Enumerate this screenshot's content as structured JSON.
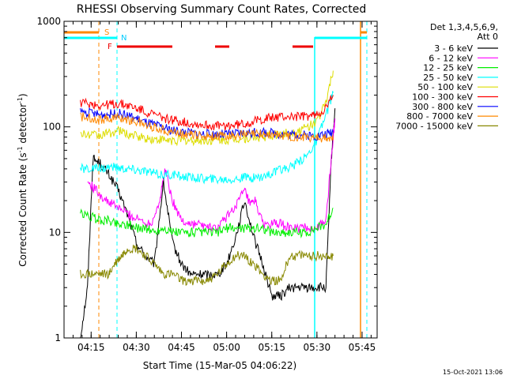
{
  "chart_data": {
    "type": "line",
    "title": "RHESSI Observing Summary Count Rates, Corrected",
    "xlabel": "Start Time (15-Mar-05 04:06:22)",
    "ylabel_main": "Corrected Count Rate (s",
    "ylabel_sup1": "-1",
    "ylabel_mid": " detector",
    "ylabel_sup2": "-1",
    "ylabel_end": ")",
    "yscale": "log",
    "ylim": [
      1,
      1000
    ],
    "xlim_minutes": [
      4.1,
      5.8333
    ],
    "xticks": [
      {
        "label": "04:15",
        "value": 4.25
      },
      {
        "label": "04:30",
        "value": 4.5
      },
      {
        "label": "04:45",
        "value": 4.75
      },
      {
        "label": "05:00",
        "value": 5.0
      },
      {
        "label": "05:15",
        "value": 5.25
      },
      {
        "label": "05:30",
        "value": 5.5
      },
      {
        "label": "05:45",
        "value": 5.75
      }
    ],
    "yticks": [
      {
        "label": "1",
        "value": 1
      },
      {
        "label": "10",
        "value": 10
      },
      {
        "label": "100",
        "value": 100
      },
      {
        "label": "1000",
        "value": 1000
      }
    ],
    "legend_header": [
      "Det 1,3,4,5,6,9,",
      "Att 0"
    ],
    "legend_position": "right",
    "series": [
      {
        "name": "3 - 6 keV",
        "color": "#000000",
        "points": [
          [
            4.19,
            1
          ],
          [
            4.23,
            3
          ],
          [
            4.26,
            50
          ],
          [
            4.3,
            45
          ],
          [
            4.35,
            35
          ],
          [
            4.4,
            25
          ],
          [
            4.45,
            15
          ],
          [
            4.5,
            8
          ],
          [
            4.55,
            6
          ],
          [
            4.6,
            5
          ],
          [
            4.65,
            30
          ],
          [
            4.7,
            8
          ],
          [
            4.75,
            5
          ],
          [
            4.8,
            4
          ],
          [
            4.85,
            4
          ],
          [
            4.9,
            4
          ],
          [
            4.95,
            4
          ],
          [
            5.0,
            5
          ],
          [
            5.05,
            9
          ],
          [
            5.1,
            20
          ],
          [
            5.15,
            9
          ],
          [
            5.2,
            5
          ],
          [
            5.25,
            2.5
          ],
          [
            5.3,
            2.5
          ],
          [
            5.35,
            3
          ],
          [
            5.4,
            3
          ],
          [
            5.45,
            3
          ],
          [
            5.5,
            3
          ],
          [
            5.55,
            3
          ],
          [
            5.58,
            50
          ],
          [
            5.6,
            150
          ]
        ]
      },
      {
        "name": "6 - 12 keV",
        "color": "#ff00ff",
        "points": [
          [
            4.23,
            30
          ],
          [
            4.28,
            25
          ],
          [
            4.33,
            20
          ],
          [
            4.38,
            18
          ],
          [
            4.43,
            16
          ],
          [
            4.48,
            14
          ],
          [
            4.53,
            13
          ],
          [
            4.58,
            12
          ],
          [
            4.63,
            20
          ],
          [
            4.66,
            40
          ],
          [
            4.7,
            20
          ],
          [
            4.75,
            13
          ],
          [
            4.8,
            12
          ],
          [
            4.85,
            12
          ],
          [
            4.9,
            11
          ],
          [
            4.95,
            11
          ],
          [
            5.0,
            14
          ],
          [
            5.05,
            18
          ],
          [
            5.1,
            25
          ],
          [
            5.13,
            18
          ],
          [
            5.16,
            20
          ],
          [
            5.2,
            12
          ],
          [
            5.25,
            12
          ],
          [
            5.3,
            12
          ],
          [
            5.35,
            11
          ],
          [
            5.4,
            11
          ],
          [
            5.45,
            11
          ],
          [
            5.5,
            11
          ],
          [
            5.55,
            13
          ],
          [
            5.59,
            80
          ],
          [
            5.6,
            120
          ]
        ]
      },
      {
        "name": "12 - 25 keV",
        "color": "#00ee00",
        "points": [
          [
            4.19,
            15
          ],
          [
            4.25,
            14
          ],
          [
            4.3,
            13
          ],
          [
            4.35,
            13
          ],
          [
            4.4,
            12
          ],
          [
            4.45,
            12
          ],
          [
            4.5,
            11
          ],
          [
            4.55,
            11
          ],
          [
            4.6,
            10
          ],
          [
            4.65,
            11
          ],
          [
            4.7,
            10
          ],
          [
            4.75,
            10
          ],
          [
            4.8,
            10
          ],
          [
            4.85,
            10
          ],
          [
            4.9,
            10
          ],
          [
            4.95,
            10
          ],
          [
            5.0,
            11
          ],
          [
            5.05,
            11
          ],
          [
            5.1,
            11
          ],
          [
            5.15,
            11
          ],
          [
            5.2,
            11
          ],
          [
            5.25,
            10
          ],
          [
            5.3,
            10
          ],
          [
            5.35,
            10
          ],
          [
            5.4,
            10
          ],
          [
            5.45,
            10
          ],
          [
            5.5,
            11
          ],
          [
            5.55,
            12
          ],
          [
            5.59,
            17
          ]
        ]
      },
      {
        "name": "25 - 50 keV",
        "color": "#00ffff",
        "points": [
          [
            4.19,
            40
          ],
          [
            4.25,
            40
          ],
          [
            4.3,
            40
          ],
          [
            4.35,
            42
          ],
          [
            4.4,
            41
          ],
          [
            4.45,
            40
          ],
          [
            4.5,
            39
          ],
          [
            4.55,
            38
          ],
          [
            4.6,
            36
          ],
          [
            4.65,
            35
          ],
          [
            4.7,
            35
          ],
          [
            4.75,
            34
          ],
          [
            4.8,
            33
          ],
          [
            4.85,
            33
          ],
          [
            4.9,
            32
          ],
          [
            4.95,
            32
          ],
          [
            5.0,
            32
          ],
          [
            5.05,
            32
          ],
          [
            5.1,
            33
          ],
          [
            5.15,
            33
          ],
          [
            5.2,
            34
          ],
          [
            5.25,
            36
          ],
          [
            5.3,
            39
          ],
          [
            5.35,
            42
          ],
          [
            5.4,
            46
          ],
          [
            5.45,
            55
          ],
          [
            5.5,
            75
          ],
          [
            5.55,
            130
          ],
          [
            5.59,
            210
          ]
        ]
      },
      {
        "name": "50 - 100 keV",
        "color": "#dddd00",
        "points": [
          [
            4.19,
            85
          ],
          [
            4.25,
            84
          ],
          [
            4.3,
            83
          ],
          [
            4.35,
            87
          ],
          [
            4.4,
            92
          ],
          [
            4.45,
            86
          ],
          [
            4.5,
            82
          ],
          [
            4.55,
            78
          ],
          [
            4.6,
            76
          ],
          [
            4.65,
            75
          ],
          [
            4.7,
            74
          ],
          [
            4.75,
            74
          ],
          [
            4.8,
            74
          ],
          [
            4.85,
            74
          ],
          [
            4.9,
            74
          ],
          [
            4.95,
            75
          ],
          [
            5.0,
            75
          ],
          [
            5.05,
            77
          ],
          [
            5.1,
            78
          ],
          [
            5.15,
            79
          ],
          [
            5.2,
            80
          ],
          [
            5.25,
            82
          ],
          [
            5.3,
            85
          ],
          [
            5.35,
            88
          ],
          [
            5.4,
            92
          ],
          [
            5.45,
            100
          ],
          [
            5.5,
            115
          ],
          [
            5.55,
            170
          ],
          [
            5.59,
            340
          ]
        ]
      },
      {
        "name": "100 - 300 keV",
        "color": "#ff0000",
        "points": [
          [
            4.19,
            170
          ],
          [
            4.25,
            165
          ],
          [
            4.3,
            160
          ],
          [
            4.35,
            162
          ],
          [
            4.4,
            165
          ],
          [
            4.45,
            160
          ],
          [
            4.5,
            150
          ],
          [
            4.55,
            140
          ],
          [
            4.6,
            130
          ],
          [
            4.65,
            122
          ],
          [
            4.7,
            116
          ],
          [
            4.75,
            112
          ],
          [
            4.8,
            108
          ],
          [
            4.85,
            105
          ],
          [
            4.9,
            103
          ],
          [
            4.95,
            102
          ],
          [
            5.0,
            102
          ],
          [
            5.05,
            104
          ],
          [
            5.1,
            107
          ],
          [
            5.15,
            112
          ],
          [
            5.2,
            118
          ],
          [
            5.25,
            122
          ],
          [
            5.3,
            124
          ],
          [
            5.35,
            125
          ],
          [
            5.4,
            125
          ],
          [
            5.45,
            126
          ],
          [
            5.5,
            130
          ],
          [
            5.55,
            150
          ],
          [
            5.59,
            200
          ]
        ]
      },
      {
        "name": "300 - 800 keV",
        "color": "#0000ff",
        "points": [
          [
            4.19,
            140
          ],
          [
            4.25,
            135
          ],
          [
            4.3,
            130
          ],
          [
            4.35,
            132
          ],
          [
            4.4,
            134
          ],
          [
            4.45,
            128
          ],
          [
            4.5,
            120
          ],
          [
            4.55,
            110
          ],
          [
            4.6,
            104
          ],
          [
            4.65,
            98
          ],
          [
            4.7,
            93
          ],
          [
            4.75,
            90
          ],
          [
            4.8,
            88
          ],
          [
            4.85,
            86
          ],
          [
            4.9,
            85
          ],
          [
            4.95,
            85
          ],
          [
            5.0,
            85
          ],
          [
            5.05,
            86
          ],
          [
            5.1,
            87
          ],
          [
            5.15,
            88
          ],
          [
            5.2,
            88
          ],
          [
            5.25,
            87
          ],
          [
            5.3,
            86
          ],
          [
            5.35,
            85
          ],
          [
            5.4,
            84
          ],
          [
            5.45,
            83
          ],
          [
            5.5,
            82
          ],
          [
            5.55,
            85
          ],
          [
            5.59,
            90
          ]
        ]
      },
      {
        "name": "800 - 7000 keV",
        "color": "#ff8800",
        "points": [
          [
            4.19,
            125
          ],
          [
            4.25,
            122
          ],
          [
            4.3,
            118
          ],
          [
            4.35,
            120
          ],
          [
            4.4,
            122
          ],
          [
            4.45,
            118
          ],
          [
            4.5,
            112
          ],
          [
            4.55,
            105
          ],
          [
            4.6,
            99
          ],
          [
            4.65,
            94
          ],
          [
            4.7,
            90
          ],
          [
            4.75,
            87
          ],
          [
            4.8,
            85
          ],
          [
            4.85,
            83
          ],
          [
            4.9,
            82
          ],
          [
            4.95,
            82
          ],
          [
            5.0,
            82
          ],
          [
            5.05,
            83
          ],
          [
            5.1,
            84
          ],
          [
            5.15,
            85
          ],
          [
            5.2,
            85
          ],
          [
            5.25,
            84
          ],
          [
            5.3,
            83
          ],
          [
            5.35,
            82
          ],
          [
            5.4,
            81
          ],
          [
            5.45,
            80
          ],
          [
            5.5,
            80
          ],
          [
            5.55,
            78
          ],
          [
            5.59,
            75
          ]
        ]
      },
      {
        "name": "7000 - 15000 keV",
        "color": "#888800",
        "points": [
          [
            4.19,
            4
          ],
          [
            4.25,
            4
          ],
          [
            4.3,
            4
          ],
          [
            4.35,
            4
          ],
          [
            4.38,
            5
          ],
          [
            4.42,
            6
          ],
          [
            4.45,
            7
          ],
          [
            4.5,
            7
          ],
          [
            4.55,
            6
          ],
          [
            4.6,
            5
          ],
          [
            4.65,
            4
          ],
          [
            4.7,
            4
          ],
          [
            4.75,
            3.5
          ],
          [
            4.8,
            3.5
          ],
          [
            4.85,
            3.5
          ],
          [
            4.9,
            3.5
          ],
          [
            4.95,
            4
          ],
          [
            5.0,
            5
          ],
          [
            5.05,
            6
          ],
          [
            5.1,
            6
          ],
          [
            5.15,
            5
          ],
          [
            5.2,
            4
          ],
          [
            5.25,
            3.5
          ],
          [
            5.3,
            3.5
          ],
          [
            5.35,
            6
          ],
          [
            5.4,
            6
          ],
          [
            5.45,
            6
          ],
          [
            5.5,
            6
          ],
          [
            5.55,
            6
          ],
          [
            5.59,
            6
          ]
        ]
      }
    ]
  },
  "flags": {
    "s_label": "S",
    "n_label": "N",
    "f_label": "F"
  },
  "footer_stamp": "15-Oct-2021 13:06"
}
